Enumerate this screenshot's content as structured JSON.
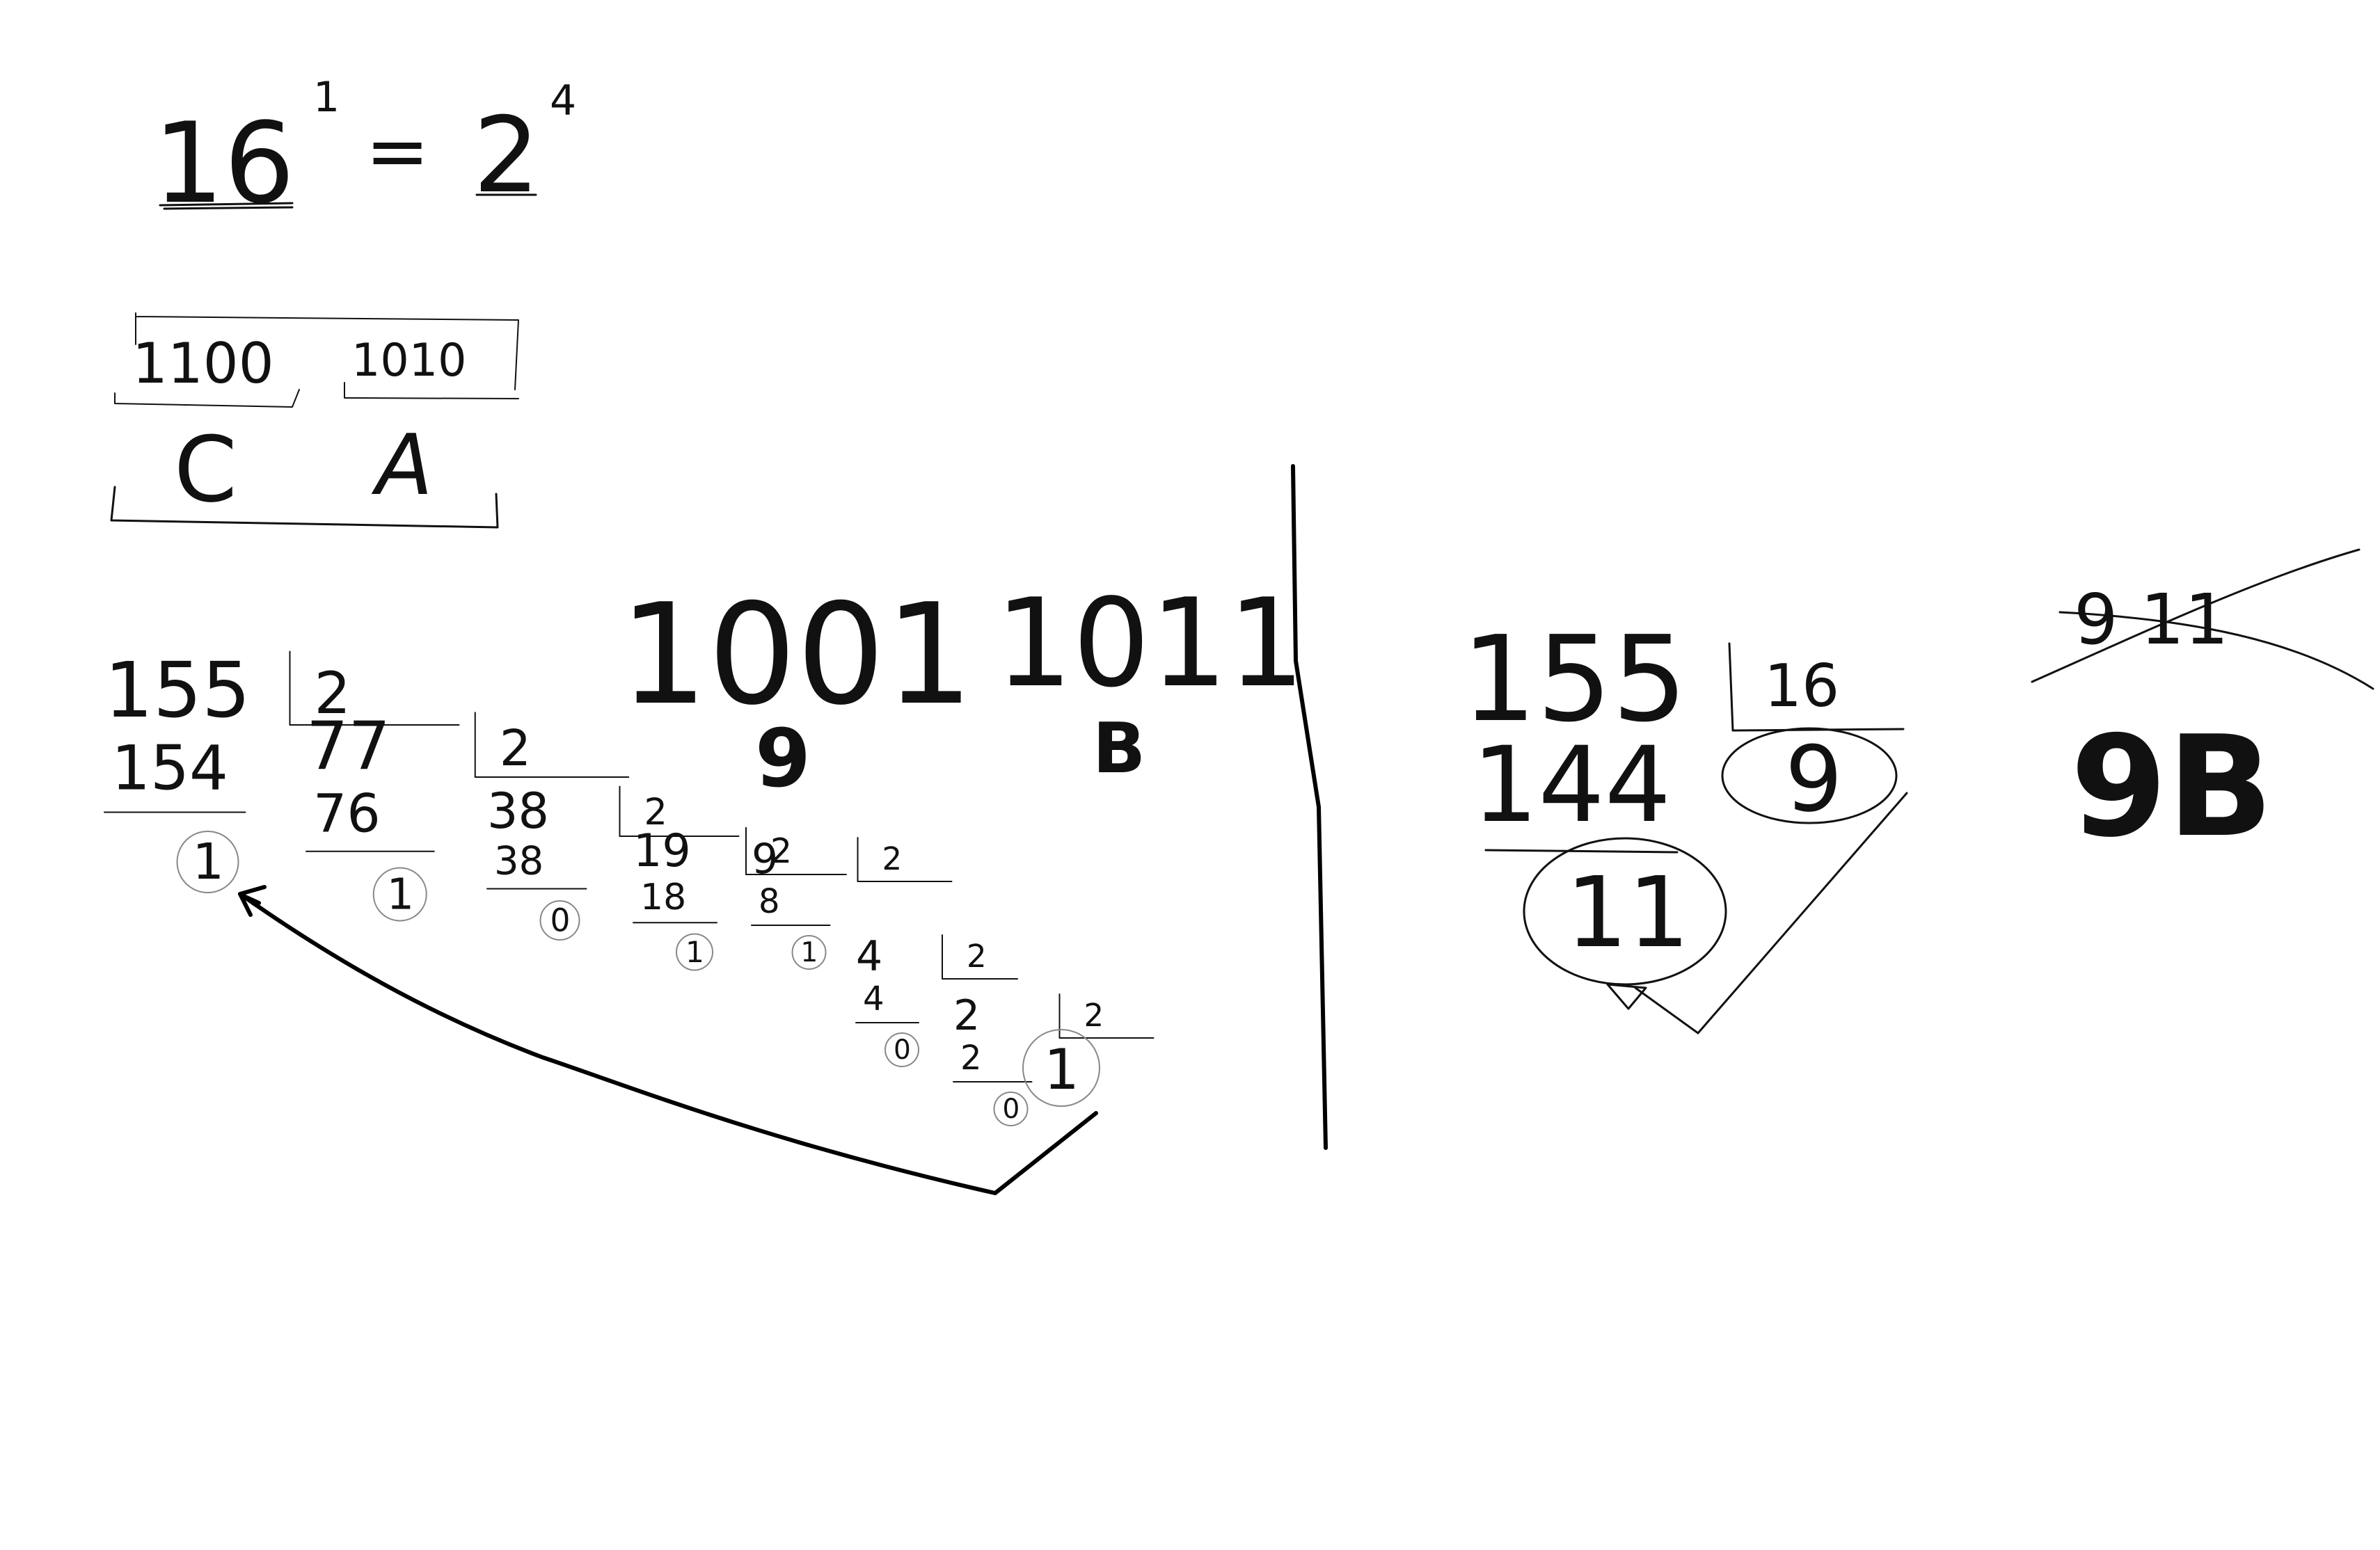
{
  "equation": {
    "base": "16",
    "exp1": "1",
    "equals": "=",
    "base2": "2",
    "exp2": "4"
  },
  "hex_example": {
    "nibble1": "1100",
    "nibble2": "1010",
    "hex1": "C",
    "hex2": "A"
  },
  "binary_division": {
    "steps": [
      {
        "dividend": "155",
        "divisor": "2",
        "product": "154",
        "remainder": "1"
      },
      {
        "dividend": "77",
        "divisor": "2",
        "product": "76",
        "remainder": "1"
      },
      {
        "dividend": "38",
        "divisor": "2",
        "product": "38",
        "remainder": "0"
      },
      {
        "dividend": "19",
        "divisor": "2",
        "product": "18",
        "remainder": "1"
      },
      {
        "dividend": "9",
        "divisor": "2",
        "product": "8",
        "remainder": "1"
      },
      {
        "dividend": "4",
        "divisor": "2",
        "product": "4",
        "remainder": "0"
      },
      {
        "dividend": "2",
        "divisor": "2",
        "product": "2",
        "remainder": "0"
      },
      {
        "dividend": "1",
        "divisor": "",
        "product": "",
        "remainder": "1"
      }
    ]
  },
  "binary_result": {
    "high_nibble": "1001",
    "low_nibble": "1011",
    "high_hex": "9",
    "low_hex": "B"
  },
  "hex_division": {
    "dividend": "155",
    "divisor": "16",
    "product": "144",
    "quotient": "9",
    "remainder": "11"
  },
  "hex_result": {
    "crossed": "9 11",
    "final": "9B"
  },
  "ink_color": "#111111",
  "circle_color": "#888888"
}
